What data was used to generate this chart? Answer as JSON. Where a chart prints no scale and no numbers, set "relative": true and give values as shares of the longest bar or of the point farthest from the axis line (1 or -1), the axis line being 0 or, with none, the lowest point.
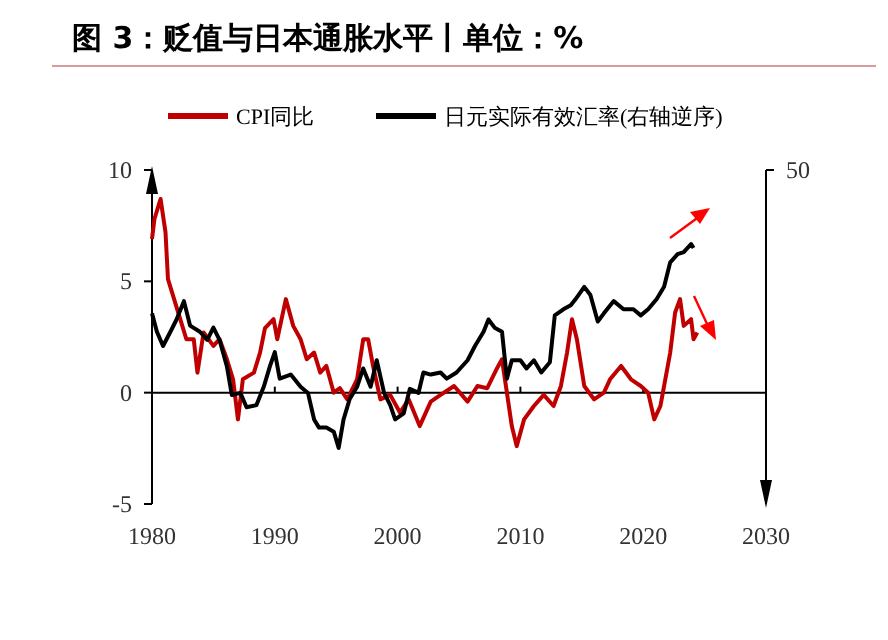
{
  "chart_data": [
    {
      "type": "line",
      "title": "图 3：贬值与日本通胀水平丨单位：%",
      "xlim": [
        1980,
        2030
      ],
      "xticks": [
        1980,
        1990,
        2000,
        2010,
        2020,
        2030
      ],
      "ylim": [
        -5,
        10
      ],
      "yticks": [
        -5,
        0,
        5,
        10
      ],
      "legend": "top",
      "ref_lines": [
        {
          "axis": "y",
          "value": 0,
          "color": "#000000"
        }
      ],
      "series": [
        {
          "name": "CPI同比",
          "color": "#c00000",
          "x": [
            1980.0,
            1980.2,
            1980.7,
            1981.1,
            1981.3,
            1981.8,
            1982.3,
            1982.8,
            1983.4,
            1983.7,
            1984.2,
            1985.0,
            1985.5,
            1986.1,
            1986.6,
            1987.0,
            1987.4,
            1988.3,
            1988.8,
            1989.2,
            1989.9,
            1990.2,
            1990.9,
            1991.5,
            1992.1,
            1992.6,
            1993.2,
            1993.7,
            1994.2,
            1994.8,
            1995.3,
            1995.9,
            1996.7,
            1997.2,
            1997.6,
            1998.0,
            1998.6,
            1999.4,
            2000.2,
            2000.9,
            2001.8,
            2002.7,
            2003.5,
            2004.6,
            2005.7,
            2006.5,
            2007.3,
            2008.1,
            2008.5,
            2008.9,
            2009.3,
            2009.7,
            2010.3,
            2011.1,
            2011.9,
            2012.7,
            2013.3,
            2013.8,
            2014.2,
            2014.6,
            2015.2,
            2016.0,
            2016.8,
            2017.3,
            2018.2,
            2019.0,
            2019.8,
            2020.4,
            2020.9,
            2021.4,
            2021.8,
            2022.2,
            2022.6,
            2023.0,
            2023.3,
            2023.9,
            2024.1,
            2024.4
          ],
          "values": [
            6.9,
            7.8,
            8.7,
            7.2,
            5.1,
            4.2,
            3.3,
            2.4,
            2.4,
            0.9,
            2.7,
            2.1,
            2.4,
            1.5,
            0.6,
            -1.2,
            0.6,
            0.9,
            1.8,
            2.9,
            3.3,
            2.4,
            4.2,
            3.0,
            2.4,
            1.5,
            1.8,
            0.9,
            1.2,
            0,
            0.2,
            -0.3,
            0.6,
            2.4,
            2.4,
            1.2,
            -0.3,
            -0.1,
            -0.9,
            -0.3,
            -1.5,
            -0.4,
            -0.1,
            0.3,
            -0.4,
            0.3,
            0.2,
            1.1,
            1.5,
            0,
            -1.5,
            -2.4,
            -1.2,
            -0.6,
            -0.1,
            -0.6,
            0.3,
            1.8,
            3.3,
            2.4,
            0.3,
            -0.3,
            0,
            0.6,
            1.2,
            0.6,
            0.3,
            0,
            -1.2,
            -0.6,
            0.6,
            1.8,
            3.6,
            4.2,
            3.0,
            3.3,
            2.4,
            2.7
          ]
        }
      ]
    },
    {
      "type": "line",
      "relative": true,
      "xlim": [
        1980,
        2030
      ],
      "legend": "top",
      "annotations": [
        "50"
      ],
      "series": [
        {
          "name": "日元实际有效汇率(右轴逆序)",
          "color": "#000000",
          "axis": "y2",
          "x": [
            1980.0,
            1980.4,
            1980.9,
            1981.5,
            1982.0,
            1982.6,
            1983.1,
            1983.9,
            1984.5,
            1985.0,
            1985.5,
            1986.1,
            1986.5,
            1987.2,
            1987.7,
            1988.5,
            1989.1,
            1989.6,
            1990.0,
            1990.4,
            1991.3,
            1992.1,
            1992.7,
            1993.2,
            1993.6,
            1994.2,
            1994.8,
            1995.2,
            1995.6,
            1996.1,
            1996.7,
            1997.2,
            1997.8,
            1998.3,
            1998.9,
            1999.4,
            1999.8,
            2000.5,
            2001.0,
            2001.7,
            2002.1,
            2002.7,
            2003.5,
            2004.0,
            2004.8,
            2005.7,
            2006.3,
            2007.0,
            2007.4,
            2007.9,
            2008.5,
            2008.9,
            2009.3,
            2010.0,
            2010.5,
            2011.1,
            2011.7,
            2012.4,
            2012.8,
            2013.5,
            2014.1,
            2014.5,
            2015.2,
            2015.7,
            2016.3,
            2016.8,
            2017.6,
            2018.4,
            2019.2,
            2019.8,
            2020.4,
            2021.1,
            2021.7,
            2022.2,
            2022.8,
            2023.3,
            2023.9,
            2024.1
          ],
          "values": [
            0.66,
            0.57,
            0.5,
            0.57,
            0.63,
            0.72,
            0.6,
            0.57,
            0.53,
            0.59,
            0.53,
            0.4,
            0.26,
            0.27,
            0.2,
            0.21,
            0.3,
            0.4,
            0.47,
            0.34,
            0.36,
            0.3,
            0.27,
            0.14,
            0.1,
            0.1,
            0.08,
            0,
            0.14,
            0.24,
            0.3,
            0.39,
            0.3,
            0.43,
            0.27,
            0.21,
            0.14,
            0.17,
            0.29,
            0.27,
            0.37,
            0.36,
            0.37,
            0.34,
            0.37,
            0.43,
            0.5,
            0.57,
            0.63,
            0.59,
            0.57,
            0.34,
            0.43,
            0.43,
            0.39,
            0.43,
            0.37,
            0.42,
            0.65,
            0.68,
            0.7,
            0.73,
            0.79,
            0.75,
            0.62,
            0.66,
            0.72,
            0.68,
            0.68,
            0.65,
            0.68,
            0.73,
            0.79,
            0.91,
            0.95,
            0.96,
            1,
            0.98
          ]
        }
      ]
    }
  ]
}
